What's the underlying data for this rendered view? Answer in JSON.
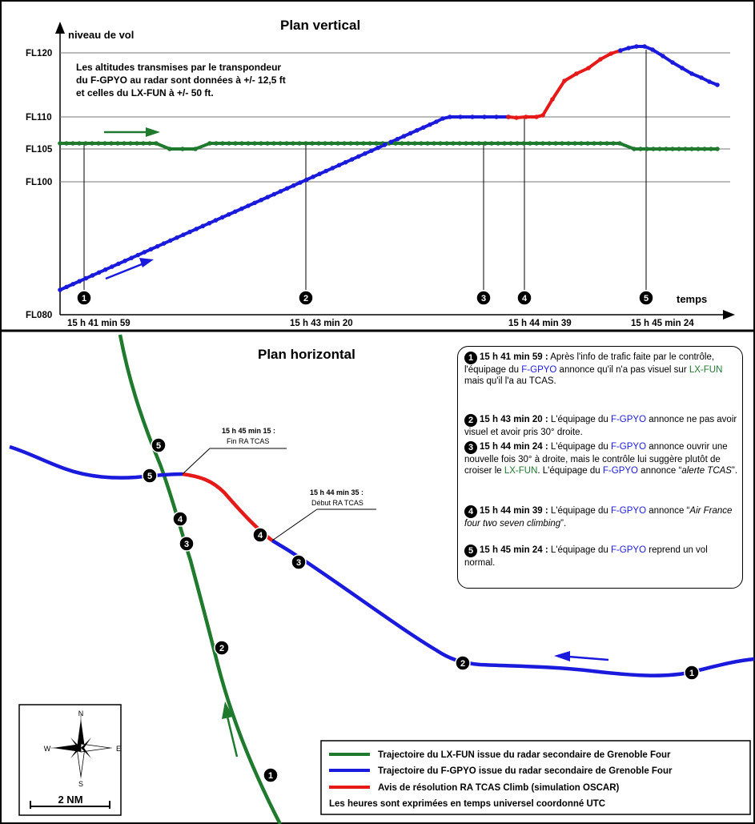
{
  "vertical_panel": {
    "title": "Plan vertical",
    "y_axis_label": "niveau de vol",
    "x_axis_label": "temps",
    "flight_levels": [
      "FL120",
      "FL110",
      "FL105",
      "FL100",
      "FL080"
    ],
    "note_lines": [
      "Les altitudes transmises par le transpondeur",
      "du F-GPYO au radar sont données à +/- 12,5 ft",
      "et celles du LX-FUN à +/- 50 ft."
    ],
    "time_ticks": [
      "15 h 41 min 59",
      "15 h 43 min 20",
      "15 h 44 min 39",
      "15 h 45 min 24"
    ],
    "event_markers": [
      "1",
      "2",
      "3",
      "4",
      "5"
    ]
  },
  "horizontal_panel": {
    "title": "Plan horizontal",
    "annotation_end": {
      "time": "15 h 45 min 15 :",
      "text": "Fin RA TCAS"
    },
    "annotation_start": {
      "time": "15 h 44 min 35 :",
      "text": "Début RA TCAS"
    },
    "compass": {
      "n": "N",
      "s": "S",
      "e": "E",
      "w": "W",
      "scale": "2 NM"
    }
  },
  "events": [
    {
      "n": "1",
      "time": "15 h 41 min 59 :",
      "parts": [
        " Après l'info de trafic faite par le contrôle, l'équipage du ",
        {
          "c": "blue",
          "t": "F-GPYO"
        },
        " annonce qu'il n'a pas visuel sur ",
        {
          "c": "green",
          "t": "LX-FUN"
        },
        " mais qu'il l'a au TCAS."
      ]
    },
    {
      "n": "2",
      "time": "15 h 43 min 20 :",
      "parts": [
        " L'équipage du ",
        {
          "c": "blue",
          "t": "F-GPYO"
        },
        " annonce ne pas avoir visuel et avoir pris 30° droite."
      ]
    },
    {
      "n": "3",
      "time": "15 h 44 min 24 :",
      "parts": [
        " L'équipage du ",
        {
          "c": "blue",
          "t": "F-GPYO"
        },
        " annonce ouvrir une nouvelle fois 30° à droite, mais le contrôle lui suggère plutôt de croiser le ",
        {
          "c": "green",
          "t": "LX-FUN"
        },
        ". L'équipage du ",
        {
          "c": "blue",
          "t": "F-GPYO"
        },
        " annonce “",
        {
          "c": "i",
          "t": "alerte TCAS"
        },
        "”."
      ]
    },
    {
      "n": "4",
      "time": "15 h 44 min 39 :",
      "parts": [
        " L'équipage du ",
        {
          "c": "blue",
          "t": "F-GPYO"
        },
        " annonce “",
        {
          "c": "i",
          "t": "Air France four two seven climbing"
        },
        "”."
      ]
    },
    {
      "n": "5",
      "time": "15 h 45 min 24 :",
      "parts": [
        " L'équipage du ",
        {
          "c": "blue",
          "t": "F-GPYO"
        },
        " reprend un vol normal."
      ]
    }
  ],
  "legend": {
    "items": [
      {
        "color": "#1f7a2e",
        "label": "Trajectoire du LX-FUN issue du radar secondaire de Grenoble Four"
      },
      {
        "color": "#1a1adc",
        "label": "Trajectoire du F-GPYO issue du radar secondaire de Grenoble Four"
      },
      {
        "color": "#e61919",
        "label": "Avis de résolution RA TCAS Climb (simulation OSCAR)"
      }
    ],
    "footer": "Les heures sont exprimées en temps universel coordonné UTC"
  },
  "colors": {
    "green": "#1f7a2e",
    "blue": "#1a1adc",
    "red": "#e61919"
  }
}
